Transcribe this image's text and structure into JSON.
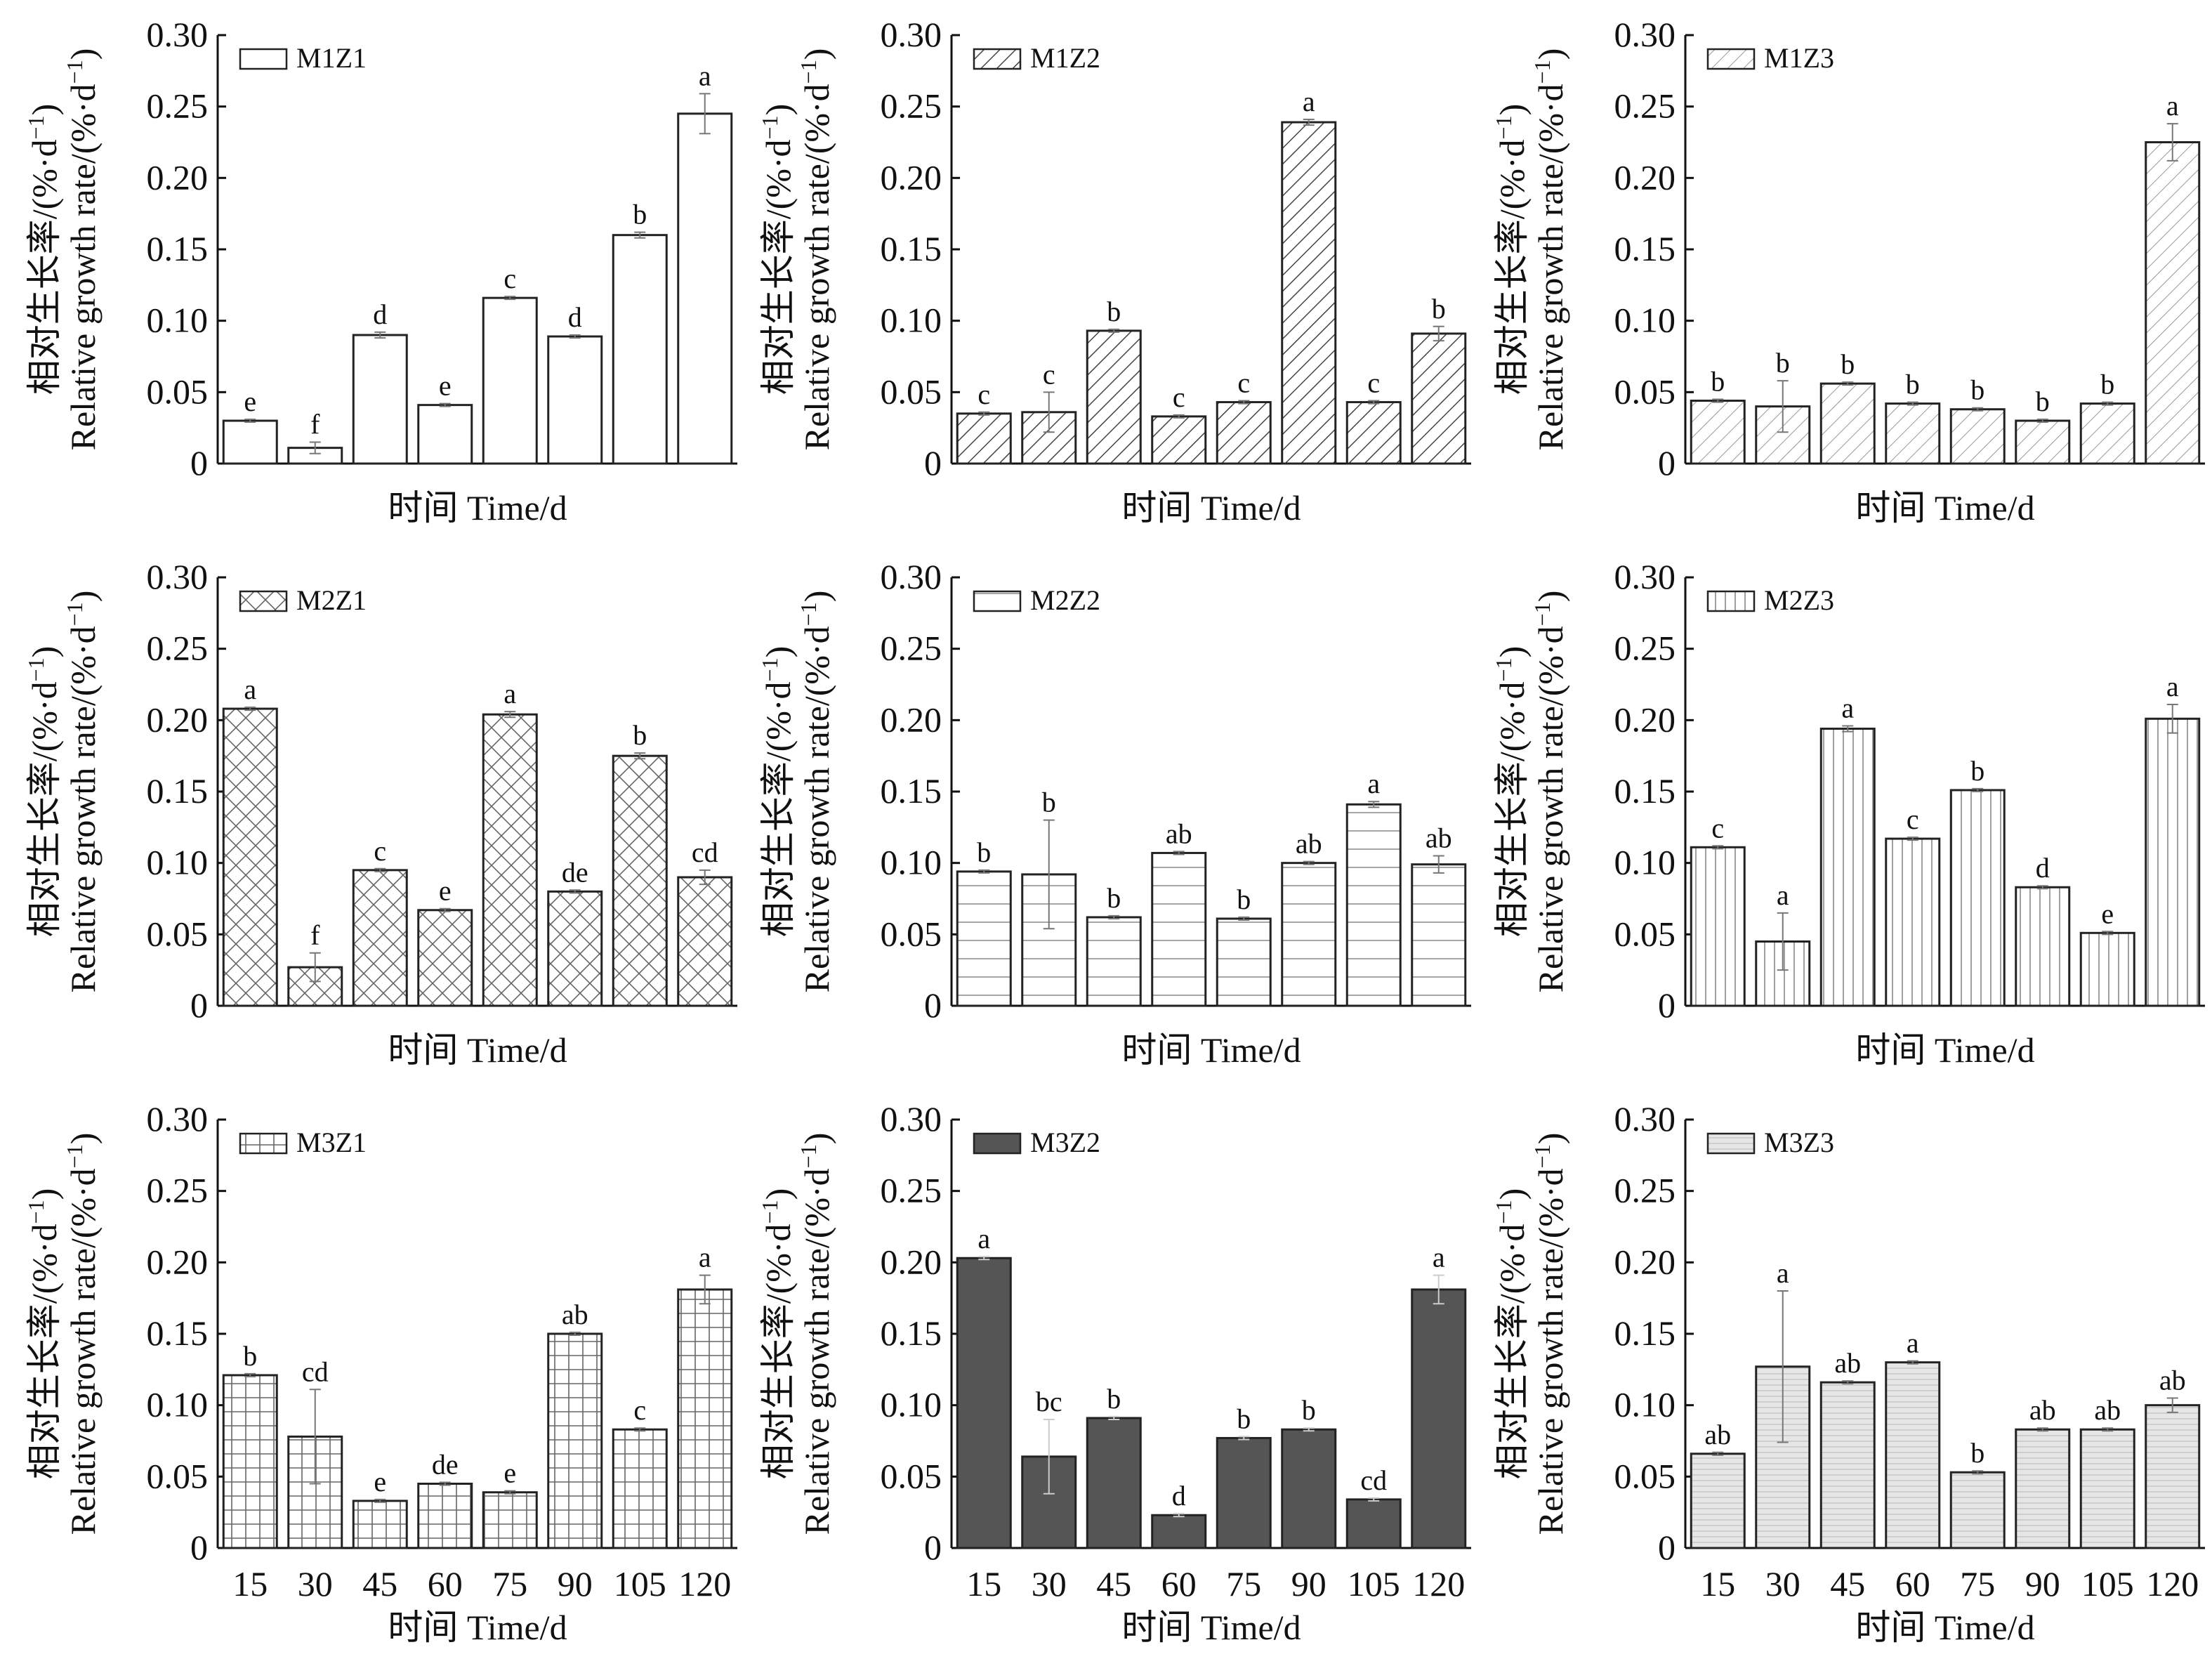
{
  "figure": {
    "ylabel": "相对生长率/(%·d⁻¹)",
    "ylabel_en_text": "Relative growth rate/(%·d",
    "ylabel_sup": "−1",
    "xlabel": "时间 Time/d",
    "x_ticks": [
      "15",
      "30",
      "45",
      "60",
      "75",
      "90",
      "105",
      "120"
    ],
    "y_ticks": [
      "0",
      "0.05",
      "0.10",
      "0.15",
      "0.20",
      "0.25",
      "0.30"
    ]
  },
  "chart_data": [
    {
      "type": "bar",
      "series": [
        {
          "name": "M1Z1",
          "values": [
            0.03,
            0.011,
            0.09,
            0.041,
            0.116,
            0.089,
            0.16,
            0.245
          ]
        }
      ],
      "errors": [
        0.001,
        0.004,
        0.002,
        0.001,
        0.001,
        0.001,
        0.002,
        0.014
      ],
      "letters": [
        "e",
        "f",
        "d",
        "e",
        "c",
        "d",
        "b",
        "a"
      ],
      "pattern": "blank",
      "categories": [
        "15",
        "30",
        "45",
        "60",
        "75",
        "90",
        "105",
        "120"
      ],
      "ylim": [
        0,
        0.3
      ],
      "xlabel": "时间 Time/d",
      "ylabel": "相对生长率/Relative growth rate/(%·d⁻¹)"
    },
    {
      "type": "bar",
      "series": [
        {
          "name": "M1Z2",
          "values": [
            0.035,
            0.036,
            0.093,
            0.033,
            0.043,
            0.239,
            0.043,
            0.091
          ]
        }
      ],
      "errors": [
        0.001,
        0.014,
        0.001,
        0.001,
        0.001,
        0.002,
        0.001,
        0.005
      ],
      "letters": [
        "c",
        "c",
        "b",
        "c",
        "c",
        "a",
        "c",
        "b"
      ],
      "pattern": "diag-dense",
      "categories": [
        "15",
        "30",
        "45",
        "60",
        "75",
        "90",
        "105",
        "120"
      ],
      "ylim": [
        0,
        0.3
      ],
      "xlabel": "时间 Time/d",
      "ylabel": "相对生长率/Relative growth rate/(%·d⁻¹)"
    },
    {
      "type": "bar",
      "series": [
        {
          "name": "M1Z3",
          "values": [
            0.044,
            0.04,
            0.056,
            0.042,
            0.038,
            0.03,
            0.042,
            0.225
          ]
        }
      ],
      "errors": [
        0.001,
        0.018,
        0.001,
        0.001,
        0.001,
        0.001,
        0.001,
        0.013
      ],
      "letters": [
        "b",
        "b",
        "b",
        "b",
        "b",
        "b",
        "b",
        "a"
      ],
      "pattern": "diag-light",
      "categories": [
        "15",
        "30",
        "45",
        "60",
        "75",
        "90",
        "105",
        "120"
      ],
      "ylim": [
        0,
        0.3
      ],
      "xlabel": "时间 Time/d",
      "ylabel": "相对生长率/Relative growth rate/(%·d⁻¹)"
    },
    {
      "type": "bar",
      "series": [
        {
          "name": "M2Z1",
          "values": [
            0.208,
            0.027,
            0.095,
            0.067,
            0.204,
            0.08,
            0.175,
            0.09
          ]
        }
      ],
      "errors": [
        0.001,
        0.01,
        0.001,
        0.001,
        0.002,
        0.001,
        0.002,
        0.005
      ],
      "letters": [
        "a",
        "f",
        "c",
        "e",
        "a",
        "de",
        "b",
        "cd"
      ],
      "pattern": "crosshatch",
      "categories": [
        "15",
        "30",
        "45",
        "60",
        "75",
        "90",
        "105",
        "120"
      ],
      "ylim": [
        0,
        0.3
      ],
      "xlabel": "时间 Time/d",
      "ylabel": "相对生长率/Relative growth rate/(%·d⁻¹)"
    },
    {
      "type": "bar",
      "series": [
        {
          "name": "M2Z2",
          "values": [
            0.094,
            0.092,
            0.062,
            0.107,
            0.061,
            0.1,
            0.141,
            0.099
          ]
        }
      ],
      "errors": [
        0.001,
        0.038,
        0.001,
        0.001,
        0.001,
        0.001,
        0.002,
        0.006
      ],
      "letters": [
        "b",
        "b",
        "b",
        "ab",
        "b",
        "ab",
        "a",
        "ab"
      ],
      "pattern": "horizontal",
      "categories": [
        "15",
        "30",
        "45",
        "60",
        "75",
        "90",
        "105",
        "120"
      ],
      "ylim": [
        0,
        0.3
      ],
      "xlabel": "时间 Time/d",
      "ylabel": "相对生长率/Relative growth rate/(%·d⁻¹)"
    },
    {
      "type": "bar",
      "series": [
        {
          "name": "M2Z3",
          "values": [
            0.111,
            0.045,
            0.194,
            0.117,
            0.151,
            0.083,
            0.051,
            0.201
          ]
        }
      ],
      "errors": [
        0.001,
        0.02,
        0.002,
        0.001,
        0.001,
        0.001,
        0.001,
        0.01
      ],
      "letters": [
        "c",
        "a",
        "a",
        "c",
        "b",
        "d",
        "e",
        "a"
      ],
      "pattern": "vertical",
      "categories": [
        "15",
        "30",
        "45",
        "60",
        "75",
        "90",
        "105",
        "120"
      ],
      "ylim": [
        0,
        0.3
      ],
      "xlabel": "时间 Time/d",
      "ylabel": "相对生长率/Relative growth rate/(%·d⁻¹)"
    },
    {
      "type": "bar",
      "series": [
        {
          "name": "M3Z1",
          "values": [
            0.121,
            0.078,
            0.033,
            0.045,
            0.039,
            0.15,
            0.083,
            0.181
          ]
        }
      ],
      "errors": [
        0.001,
        0.033,
        0.001,
        0.001,
        0.001,
        0.001,
        0.001,
        0.01
      ],
      "letters": [
        "b",
        "cd",
        "e",
        "de",
        "e",
        "ab",
        "c",
        "a"
      ],
      "pattern": "grid",
      "categories": [
        "15",
        "30",
        "45",
        "60",
        "75",
        "90",
        "105",
        "120"
      ],
      "ylim": [
        0,
        0.3
      ],
      "xlabel": "时间 Time/d",
      "ylabel": "相对生长率/Relative growth rate/(%·d⁻¹)"
    },
    {
      "type": "bar",
      "series": [
        {
          "name": "M3Z2",
          "values": [
            0.203,
            0.064,
            0.091,
            0.023,
            0.077,
            0.083,
            0.034,
            0.181
          ]
        }
      ],
      "errors": [
        0.001,
        0.026,
        0.001,
        0.001,
        0.001,
        0.001,
        0.001,
        0.01
      ],
      "letters": [
        "a",
        "bc",
        "b",
        "d",
        "b",
        "b",
        "cd",
        "a"
      ],
      "pattern": "solid",
      "categories": [
        "15",
        "30",
        "45",
        "60",
        "75",
        "90",
        "105",
        "120"
      ],
      "ylim": [
        0,
        0.3
      ],
      "xlabel": "时间 Time/d",
      "ylabel": "相对生长率/Relative growth rate/(%·d⁻¹)"
    },
    {
      "type": "bar",
      "series": [
        {
          "name": "M3Z3",
          "values": [
            0.066,
            0.127,
            0.116,
            0.13,
            0.053,
            0.083,
            0.083,
            0.1
          ]
        }
      ],
      "errors": [
        0.001,
        0.053,
        0.001,
        0.001,
        0.001,
        0.001,
        0.001,
        0.005
      ],
      "letters": [
        "ab",
        "a",
        "ab",
        "a",
        "b",
        "ab",
        "ab",
        "ab"
      ],
      "pattern": "dots",
      "categories": [
        "15",
        "30",
        "45",
        "60",
        "75",
        "90",
        "105",
        "120"
      ],
      "ylim": [
        0,
        0.3
      ],
      "xlabel": "时间 Time/d",
      "ylabel": "相对生长率/Relative growth rate/(%·d⁻¹)"
    }
  ]
}
